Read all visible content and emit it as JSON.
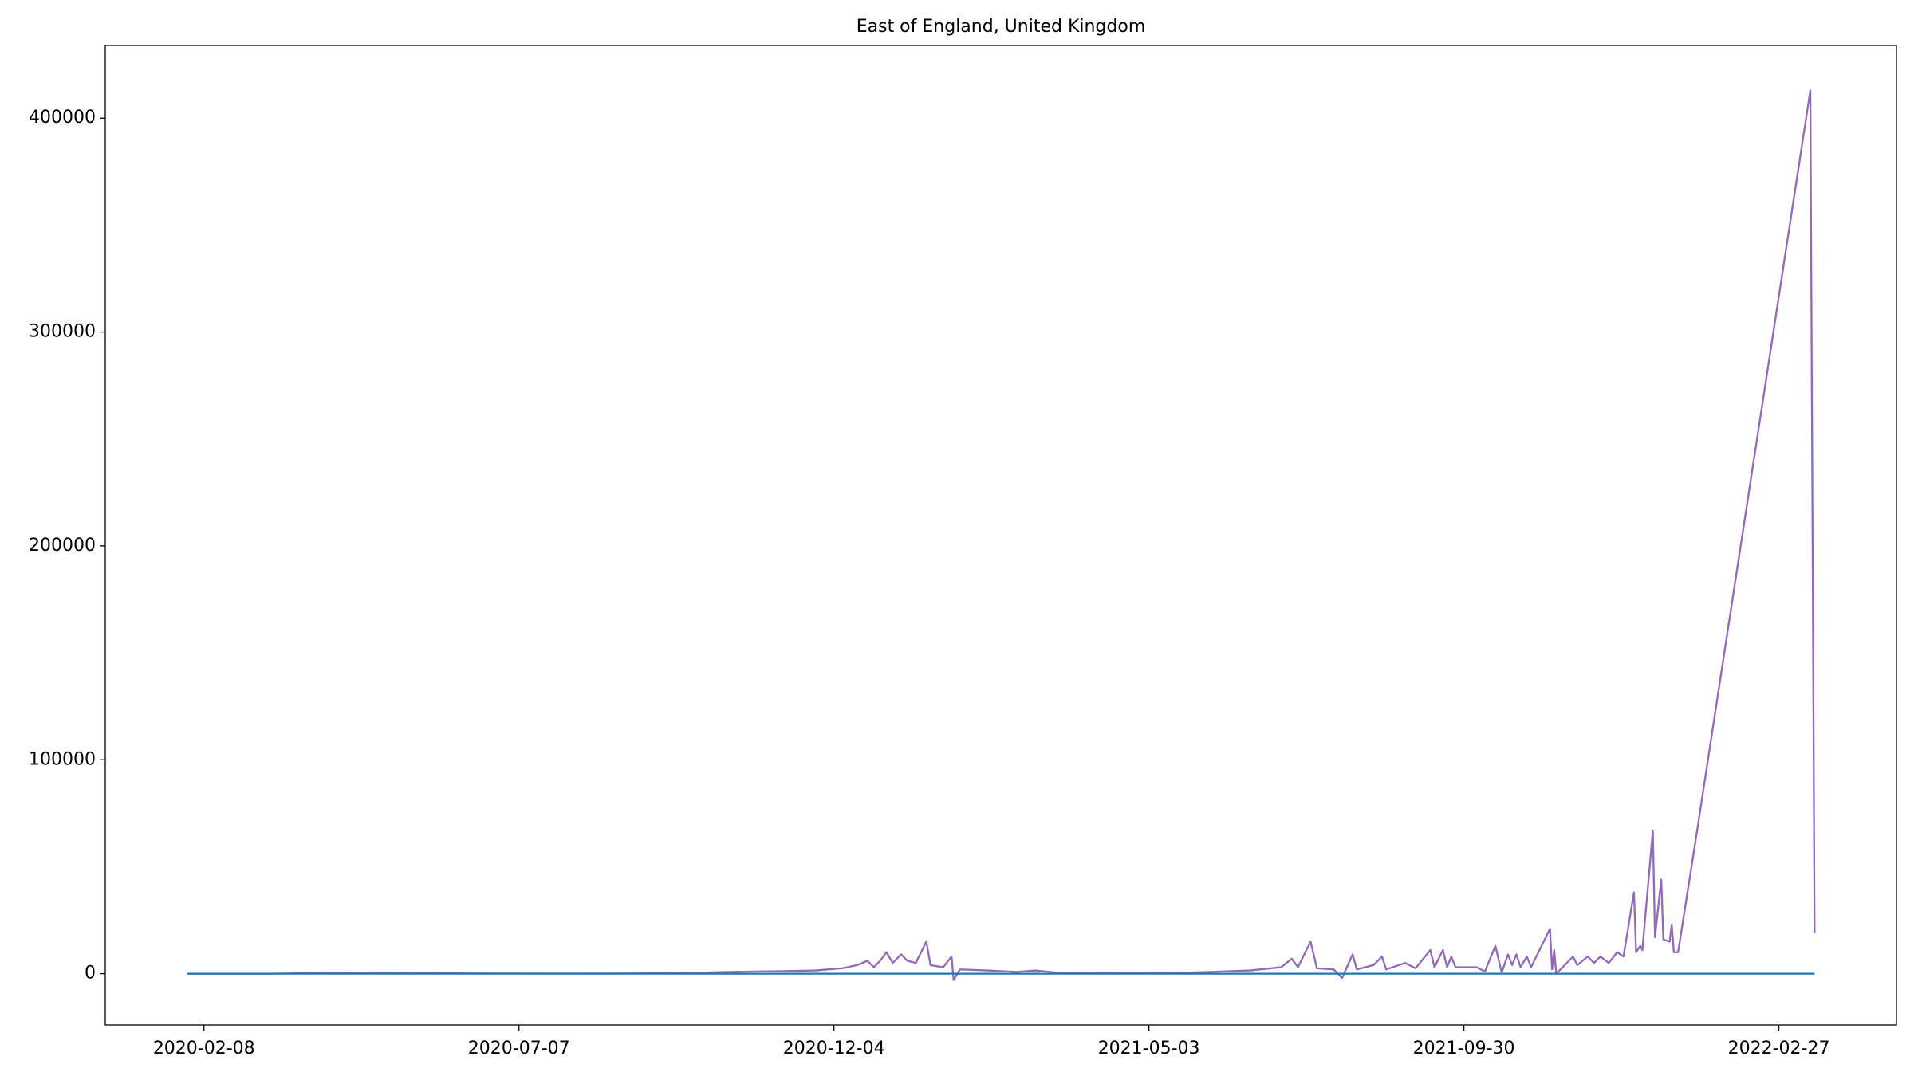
{
  "chart_data": {
    "type": "line",
    "title": "East of England, United Kingdom",
    "x": [
      "2020-01-31",
      "2020-03-10",
      "2020-04-10",
      "2020-05-10",
      "2020-06-15",
      "2020-08-15",
      "2020-09-20",
      "2020-10-15",
      "2020-11-10",
      "2020-11-25",
      "2020-12-08",
      "2020-12-15",
      "2020-12-20",
      "2020-12-23",
      "2020-12-26",
      "2020-12-29",
      "2021-01-01",
      "2021-01-05",
      "2021-01-08",
      "2021-01-12",
      "2021-01-17",
      "2021-01-19",
      "2021-01-25",
      "2021-01-29",
      "2021-01-30",
      "2021-02-02",
      "2021-02-15",
      "2021-03-01",
      "2021-03-10",
      "2021-03-20",
      "2021-04-15",
      "2021-05-15",
      "2021-06-01",
      "2021-06-20",
      "2021-07-05",
      "2021-07-10",
      "2021-07-13",
      "2021-07-19",
      "2021-07-22",
      "2021-07-30",
      "2021-08-03",
      "2021-08-08",
      "2021-08-10",
      "2021-08-18",
      "2021-08-22",
      "2021-08-24",
      "2021-09-02",
      "2021-09-07",
      "2021-09-14",
      "2021-09-16",
      "2021-09-20",
      "2021-09-22",
      "2021-09-24",
      "2021-09-26",
      "2021-10-06",
      "2021-10-10",
      "2021-10-15",
      "2021-10-18",
      "2021-10-21",
      "2021-10-23",
      "2021-10-25",
      "2021-10-27",
      "2021-10-30",
      "2021-11-01",
      "2021-11-10",
      "2021-11-11",
      "2021-11-12",
      "2021-11-13",
      "2021-11-16",
      "2021-11-21",
      "2021-11-23",
      "2021-11-28",
      "2021-12-01",
      "2021-12-04",
      "2021-12-08",
      "2021-12-12",
      "2021-12-15",
      "2021-12-20",
      "2021-12-21",
      "2021-12-23",
      "2021-12-24",
      "2021-12-29",
      "2021-12-30",
      "2022-01-02",
      "2022-01-03",
      "2022-01-06",
      "2022-01-07",
      "2022-01-08",
      "2022-01-10",
      "2022-01-18",
      "2022-03-14",
      "2022-03-16"
    ],
    "series": [
      {
        "color": "#9467bd",
        "values": [
          0,
          0,
          400,
          300,
          100,
          50,
          200,
          800,
          1200,
          1500,
          2500,
          4000,
          6000,
          3000,
          6000,
          10000,
          5000,
          9000,
          6000,
          5000,
          15000,
          4000,
          3000,
          8000,
          -3000,
          2000,
          1500,
          800,
          1500,
          500,
          400,
          300,
          800,
          1500,
          3000,
          7000,
          3000,
          15000,
          2500,
          2000,
          -2000,
          9000,
          2000,
          4000,
          8000,
          2000,
          5000,
          2500,
          11000,
          3000,
          11000,
          3000,
          8000,
          3000,
          3000,
          1000,
          13000,
          500,
          9000,
          4000,
          9000,
          3000,
          8000,
          3000,
          21000,
          2000,
          11000,
          0,
          3000,
          8000,
          4000,
          8000,
          5000,
          8000,
          5000,
          10000,
          8000,
          38000,
          10000,
          13000,
          11000,
          67000,
          17000,
          44000,
          16000,
          15000,
          23000,
          10000,
          10000,
          60000,
          413000,
          19000
        ]
      },
      {
        "color": "#1f77b4",
        "values": [
          0,
          0,
          0,
          0,
          0,
          0,
          0,
          0,
          0,
          0,
          0,
          0,
          0,
          0,
          0,
          0,
          0,
          0,
          0,
          0,
          0,
          0,
          0,
          0,
          0,
          0,
          0,
          0,
          0,
          0,
          0,
          0,
          0,
          0,
          0,
          0,
          0,
          0,
          0,
          0,
          0,
          0,
          0,
          0,
          0,
          0,
          0,
          0,
          0,
          0,
          0,
          0,
          0,
          0,
          0,
          0,
          0,
          0,
          0,
          0,
          0,
          0,
          0,
          0,
          0,
          0,
          0,
          0,
          0,
          0,
          0,
          0,
          0,
          0,
          0,
          0,
          0,
          0,
          0,
          0,
          0,
          0,
          0,
          0,
          0,
          0,
          0,
          0,
          0,
          0,
          0,
          0
        ]
      }
    ],
    "xlim": [
      "2019-12-23",
      "2022-04-24"
    ],
    "xticks": [
      "2020-02-08",
      "2020-07-07",
      "2020-12-04",
      "2021-05-03",
      "2021-09-30",
      "2022-02-27"
    ],
    "ylim": [
      -24000,
      434000
    ],
    "yticks": [
      0,
      100000,
      200000,
      300000,
      400000
    ]
  }
}
